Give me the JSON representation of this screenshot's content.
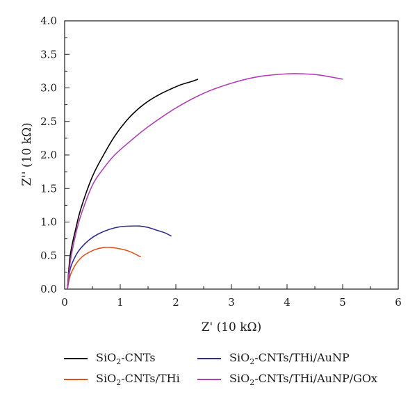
{
  "chart_data": {
    "type": "line",
    "xlabel": "Z' (10 kΩ)",
    "ylabel": "Z'' (10 kΩ)",
    "xlim": [
      0,
      6
    ],
    "ylim": [
      0,
      4.0
    ],
    "x_ticks": [
      "0",
      "1",
      "2",
      "3",
      "4",
      "5",
      "6"
    ],
    "y_ticks": [
      "0.0",
      "0.5",
      "1.0",
      "1.5",
      "2.0",
      "2.5",
      "3.0",
      "3.5",
      "4.0"
    ],
    "grid": false,
    "legend_position": "bottom",
    "series": [
      {
        "name": "SiO2-CNTs",
        "name_parts": [
          "SiO",
          "2",
          "-CNTs"
        ],
        "color": "#000000",
        "x": [
          0.05,
          0.1,
          0.2,
          0.3,
          0.5,
          0.7,
          0.9,
          1.1,
          1.3,
          1.5,
          1.7,
          1.9,
          2.1,
          2.3,
          2.4
        ],
        "y": [
          0.0,
          0.5,
          0.9,
          1.22,
          1.68,
          2.0,
          2.28,
          2.5,
          2.67,
          2.8,
          2.9,
          2.98,
          3.05,
          3.1,
          3.13
        ]
      },
      {
        "name": "SiO2-CNTs/THi",
        "name_parts": [
          "SiO",
          "2",
          "-CNTs/THi"
        ],
        "color": "#e0521c",
        "x": [
          0.05,
          0.1,
          0.2,
          0.3,
          0.4,
          0.55,
          0.7,
          0.85,
          1.0,
          1.1,
          1.2,
          1.3,
          1.37
        ],
        "y": [
          0.0,
          0.2,
          0.37,
          0.47,
          0.53,
          0.59,
          0.62,
          0.62,
          0.6,
          0.58,
          0.55,
          0.51,
          0.48
        ]
      },
      {
        "name": "SiO2-CNTs/THi/AuNP",
        "name_parts": [
          "SiO",
          "2",
          "-CNTs/THi/AuNP"
        ],
        "color": "#2e2d8f",
        "x": [
          0.05,
          0.1,
          0.2,
          0.3,
          0.45,
          0.6,
          0.8,
          1.0,
          1.2,
          1.35,
          1.5,
          1.65,
          1.8,
          1.92
        ],
        "y": [
          0.0,
          0.3,
          0.5,
          0.62,
          0.74,
          0.82,
          0.89,
          0.93,
          0.94,
          0.94,
          0.92,
          0.88,
          0.84,
          0.79
        ]
      },
      {
        "name": "SiO2-CNTs/THi/AuNP/GOx",
        "name_parts": [
          "SiO",
          "2",
          "-CNTs/THi/AuNP/GOx"
        ],
        "color": "#b03fb3",
        "x": [
          0.05,
          0.1,
          0.2,
          0.3,
          0.5,
          0.7,
          0.9,
          1.2,
          1.5,
          2.0,
          2.5,
          3.0,
          3.5,
          4.0,
          4.3,
          4.6,
          5.0
        ],
        "y": [
          0.0,
          0.4,
          0.82,
          1.12,
          1.55,
          1.8,
          2.0,
          2.22,
          2.42,
          2.7,
          2.92,
          3.07,
          3.17,
          3.21,
          3.21,
          3.19,
          3.13
        ]
      }
    ]
  }
}
